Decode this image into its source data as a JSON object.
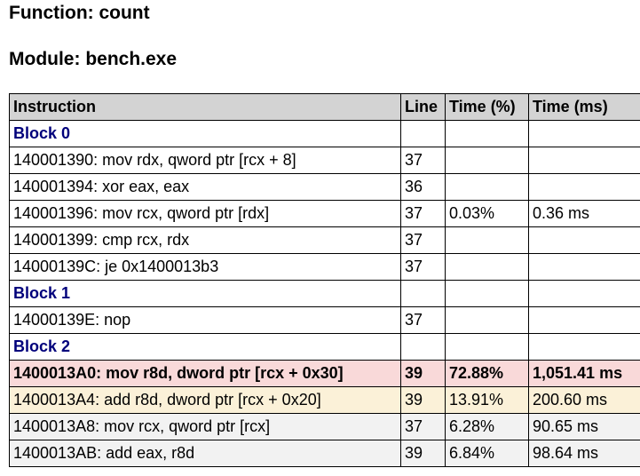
{
  "function_heading": "Function: count",
  "module_heading": "Module: bench.exe",
  "columns": [
    "Instruction",
    "Line",
    "Time (%)",
    "Time (ms)"
  ],
  "rows": [
    {
      "kind": "block",
      "label": "Block 0"
    },
    {
      "kind": "instr",
      "instruction": "140001390: mov rdx, qword ptr [rcx + 8]",
      "line": "37",
      "time_pct": "",
      "time_ms": ""
    },
    {
      "kind": "instr",
      "instruction": "140001394: xor eax, eax",
      "line": "36",
      "time_pct": "",
      "time_ms": ""
    },
    {
      "kind": "instr",
      "instruction": "140001396: mov rcx, qword ptr [rdx]",
      "line": "37",
      "time_pct": "0.03%",
      "time_ms": "0.36 ms"
    },
    {
      "kind": "instr",
      "instruction": "140001399: cmp rcx, rdx",
      "line": "37",
      "time_pct": "",
      "time_ms": ""
    },
    {
      "kind": "instr",
      "instruction": "14000139C: je 0x1400013b3",
      "line": "37",
      "time_pct": "",
      "time_ms": ""
    },
    {
      "kind": "block",
      "label": "Block 1"
    },
    {
      "kind": "instr",
      "instruction": "14000139E: nop",
      "line": "37",
      "time_pct": "",
      "time_ms": ""
    },
    {
      "kind": "block",
      "label": "Block 2"
    },
    {
      "kind": "instr",
      "instruction": "1400013A0: mov r8d, dword ptr [rcx + 0x30]",
      "line": "39",
      "time_pct": "72.88%",
      "time_ms": "1,051.41 ms",
      "highlight": "hot",
      "highlight_color": "#f9d9d9"
    },
    {
      "kind": "instr",
      "instruction": "1400013A4: add r8d, dword ptr [rcx + 0x20]",
      "line": "39",
      "time_pct": "13.91%",
      "time_ms": "200.60 ms",
      "highlight": "warm",
      "highlight_color": "#fbf1d8"
    },
    {
      "kind": "instr",
      "instruction": "1400013A8: mov rcx, qword ptr [rcx]",
      "line": "37",
      "time_pct": "6.28%",
      "time_ms": "90.65 ms",
      "highlight": "mild",
      "highlight_color": "#f2f2f2"
    },
    {
      "kind": "instr",
      "instruction": "1400013AB: add eax, r8d",
      "line": "39",
      "time_pct": "6.84%",
      "time_ms": "98.64 ms",
      "highlight": "mild",
      "highlight_color": "#f2f2f2"
    }
  ]
}
